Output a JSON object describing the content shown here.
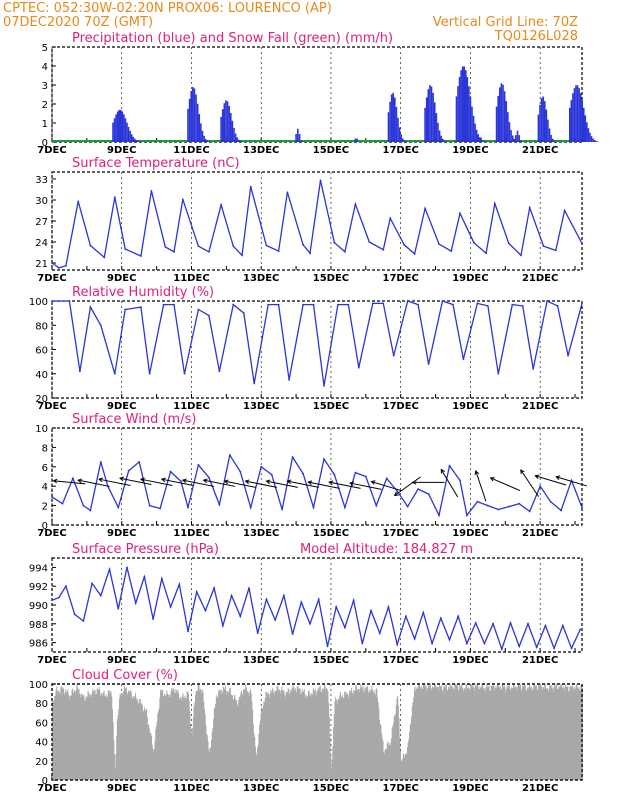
{
  "header": {
    "line1_left": "CPTEC:    052:30W-02:20N    PROX06: LOURENCO (AP)",
    "line2_left": "07DEC2020 70Z (GMT)",
    "line2_right": "Vertical Grid Line: 70Z",
    "line3_right": "TQ0126L028"
  },
  "colors": {
    "header": "#e8891a",
    "title": "#e0207a",
    "series": "#2a35d8",
    "snow": "#1a9a3a",
    "cloud": "#a8a8a8"
  },
  "x_axis": {
    "label_days": [
      7,
      9,
      11,
      13,
      15,
      17,
      19,
      21
    ],
    "labels": [
      "7DEC",
      "9DEC",
      "11DEC",
      "13DEC",
      "15DEC",
      "17DEC",
      "19DEC",
      "21DEC"
    ],
    "range_days": [
      7,
      22.2
    ]
  },
  "chart_data": [
    {
      "type": "bar",
      "title": "Precipitation (blue) and Snow Fall (green) (mm/h)",
      "ylim": [
        0,
        5
      ],
      "yticks": [
        0,
        1,
        2,
        3,
        4,
        5
      ],
      "series": [
        {
          "name": "Precipitation",
          "events": [
            [
              8.75,
              0.8,
              1.7
            ],
            [
              10.9,
              0.6,
              2.9
            ],
            [
              11.85,
              0.6,
              2.2
            ],
            [
              14.0,
              0.2,
              0.7
            ],
            [
              15.7,
              0.1,
              0.3
            ],
            [
              16.65,
              0.5,
              2.6
            ],
            [
              17.7,
              0.6,
              3.0
            ],
            [
              18.6,
              0.8,
              4.0
            ],
            [
              19.25,
              0.1,
              0.4
            ],
            [
              19.75,
              0.6,
              3.1
            ],
            [
              20.3,
              0.2,
              0.6
            ],
            [
              20.95,
              0.5,
              2.4
            ],
            [
              21.85,
              0.8,
              3.0
            ]
          ]
        }
      ]
    },
    {
      "type": "line",
      "title": "Surface Temperature (nC)",
      "ylim": [
        20,
        34
      ],
      "yticks": [
        21,
        24,
        27,
        30,
        33
      ],
      "series": [
        {
          "name": "Temperature",
          "x": [
            7.0,
            7.2,
            7.4,
            7.75,
            8.1,
            8.5,
            8.8,
            9.1,
            9.55,
            9.85,
            10.25,
            10.5,
            10.75,
            11.2,
            11.5,
            11.85,
            12.2,
            12.45,
            12.7,
            13.15,
            13.5,
            13.75,
            14.2,
            14.4,
            14.7,
            15.1,
            15.4,
            15.7,
            16.1,
            16.5,
            16.7,
            17.1,
            17.4,
            17.7,
            18.1,
            18.45,
            18.7,
            19.1,
            19.45,
            19.7,
            20.1,
            20.45,
            20.7,
            21.1,
            21.45,
            21.7,
            22.2
          ],
          "values": [
            21.0,
            20.3,
            20.6,
            29.8,
            23.5,
            21.8,
            30.4,
            23.0,
            22.0,
            31.3,
            23.3,
            22.6,
            30.1,
            23.4,
            22.6,
            29.3,
            23.4,
            22.1,
            31.9,
            23.5,
            22.7,
            31.1,
            23.6,
            22.4,
            32.8,
            23.9,
            22.6,
            29.4,
            24.0,
            22.9,
            27.4,
            23.6,
            22.3,
            28.8,
            23.7,
            22.7,
            28.1,
            23.9,
            22.4,
            29.5,
            23.8,
            22.1,
            28.9,
            23.4,
            22.8,
            28.5,
            23.8
          ]
        }
      ]
    },
    {
      "type": "line",
      "title": "Relative Humidity (%)",
      "ylim": [
        20,
        100
      ],
      "yticks": [
        20,
        40,
        60,
        80,
        100
      ],
      "series": [
        {
          "name": "RH",
          "x": [
            7.0,
            7.5,
            7.8,
            8.1,
            8.4,
            8.8,
            9.1,
            9.55,
            9.8,
            10.2,
            10.5,
            10.8,
            11.2,
            11.5,
            11.8,
            12.2,
            12.5,
            12.8,
            13.2,
            13.5,
            13.8,
            14.2,
            14.5,
            14.8,
            15.2,
            15.5,
            15.8,
            16.2,
            16.5,
            16.8,
            17.2,
            17.5,
            17.8,
            18.2,
            18.5,
            18.8,
            19.2,
            19.5,
            19.8,
            20.2,
            20.5,
            20.8,
            21.2,
            21.5,
            21.8,
            22.2
          ],
          "values": [
            100,
            100,
            42,
            95,
            80,
            40,
            93,
            95,
            40,
            97,
            97,
            40,
            93,
            88,
            42,
            97,
            90,
            32,
            97,
            97,
            35,
            97,
            97,
            30,
            97,
            97,
            45,
            98,
            98,
            55,
            100,
            97,
            48,
            100,
            97,
            52,
            98,
            96,
            40,
            97,
            96,
            44,
            100,
            96,
            55,
            98
          ]
        }
      ]
    },
    {
      "type": "line",
      "title": "Surface Wind (m/s)",
      "ylim": [
        0,
        10
      ],
      "yticks": [
        0,
        2,
        4,
        6,
        8,
        10
      ],
      "series": [
        {
          "name": "Wind speed",
          "x": [
            7.0,
            7.3,
            7.6,
            7.9,
            8.1,
            8.4,
            8.6,
            8.9,
            9.2,
            9.5,
            9.8,
            10.1,
            10.4,
            10.7,
            10.9,
            11.2,
            11.5,
            11.8,
            12.1,
            12.4,
            12.7,
            13.0,
            13.3,
            13.6,
            13.9,
            14.2,
            14.5,
            14.8,
            15.1,
            15.4,
            15.7,
            16.0,
            16.3,
            16.6,
            16.9,
            17.2,
            17.5,
            17.8,
            18.1,
            18.4,
            18.7,
            18.9,
            19.2,
            19.5,
            19.8,
            20.1,
            20.4,
            20.7,
            21.0,
            21.3,
            21.6,
            21.9,
            22.2
          ],
          "values": [
            2.9,
            2.2,
            4.8,
            2.0,
            1.5,
            6.5,
            4.0,
            1.8,
            5.6,
            6.5,
            2.0,
            1.7,
            5.5,
            4.5,
            1.8,
            6.2,
            4.9,
            2.1,
            7.2,
            5.5,
            1.8,
            6.0,
            5.2,
            1.6,
            7.0,
            5.3,
            1.8,
            6.8,
            5.2,
            1.8,
            5.4,
            5.0,
            2.0,
            4.8,
            3.5,
            1.9,
            3.7,
            3.2,
            1.0,
            6.1,
            4.6,
            1.0,
            2.4,
            2.0,
            1.6,
            1.9,
            2.2,
            1.4,
            4.0,
            2.4,
            1.5,
            4.6,
            1.8
          ]
        }
      ],
      "vectors": [
        [
          7.5,
          4.4,
          -1,
          0.1
        ],
        [
          8.2,
          4.3,
          -1,
          0.2
        ],
        [
          8.8,
          4.4,
          -1,
          0.2
        ],
        [
          9.4,
          4.5,
          -1,
          0.2
        ],
        [
          10.0,
          4.4,
          -1,
          0.2
        ],
        [
          10.6,
          4.4,
          -1,
          0.2
        ],
        [
          11.2,
          4.3,
          -1,
          0.2
        ],
        [
          11.8,
          4.3,
          -1,
          0.2
        ],
        [
          12.4,
          4.2,
          -1,
          0.2
        ],
        [
          13.0,
          4.2,
          -1,
          0.2
        ],
        [
          13.6,
          4.2,
          -1,
          0.2
        ],
        [
          14.2,
          4.2,
          -1,
          0.2
        ],
        [
          14.8,
          4.1,
          -1,
          0.2
        ],
        [
          15.4,
          4.1,
          -1,
          0.2
        ],
        [
          16.0,
          4.0,
          -1,
          0.2
        ],
        [
          16.6,
          4.0,
          -1,
          0.3
        ],
        [
          17.2,
          4.0,
          -0.7,
          -0.5
        ],
        [
          17.8,
          4.4,
          -1,
          0.0
        ],
        [
          18.4,
          4.3,
          -0.3,
          0.5
        ],
        [
          19.3,
          4.0,
          -0.2,
          0.6
        ],
        [
          20.0,
          4.2,
          -0.7,
          0.3
        ],
        [
          20.7,
          4.3,
          -0.4,
          0.6
        ],
        [
          21.3,
          4.6,
          -1,
          0.3
        ],
        [
          21.9,
          4.5,
          -1,
          0.3
        ]
      ]
    },
    {
      "type": "line",
      "title": "Surface Pressure (hPa)",
      "annotation": "Model Altitude: 184.827 m",
      "ylim": [
        985,
        995
      ],
      "yticks": [
        986,
        988,
        990,
        992,
        994
      ],
      "series": [
        {
          "name": "Pressure",
          "x": [
            7.0,
            7.2,
            7.4,
            7.65,
            7.9,
            8.15,
            8.4,
            8.65,
            8.9,
            9.15,
            9.4,
            9.65,
            9.9,
            10.15,
            10.4,
            10.65,
            10.9,
            11.15,
            11.4,
            11.65,
            11.9,
            12.15,
            12.4,
            12.65,
            12.9,
            13.15,
            13.4,
            13.65,
            13.9,
            14.15,
            14.4,
            14.65,
            14.9,
            15.15,
            15.4,
            15.65,
            15.9,
            16.15,
            16.4,
            16.65,
            16.9,
            17.15,
            17.4,
            17.65,
            17.9,
            18.15,
            18.4,
            18.65,
            18.9,
            19.15,
            19.4,
            19.65,
            19.9,
            20.15,
            20.4,
            20.65,
            20.9,
            21.15,
            21.4,
            21.65,
            21.9,
            22.15
          ],
          "values": [
            990.5,
            990.8,
            992.0,
            989.0,
            988.3,
            992.3,
            991.0,
            993.8,
            989.6,
            994.0,
            990.2,
            993.0,
            988.5,
            992.8,
            989.8,
            992.2,
            987.2,
            991.4,
            989.4,
            991.8,
            987.8,
            991.0,
            988.8,
            991.8,
            987.0,
            990.6,
            988.4,
            991.0,
            986.9,
            990.3,
            988.0,
            990.6,
            985.6,
            989.8,
            987.6,
            990.5,
            985.9,
            989.4,
            987.0,
            989.8,
            985.8,
            988.8,
            986.4,
            989.2,
            985.9,
            988.6,
            986.3,
            988.8,
            985.9,
            988.1,
            985.9,
            988.0,
            985.3,
            988.1,
            985.6,
            988.0,
            985.5,
            987.8,
            985.4,
            987.8,
            985.4,
            987.4
          ]
        }
      ]
    },
    {
      "type": "area",
      "title": "Cloud Cover (%)",
      "ylim": [
        0,
        100
      ],
      "yticks": [
        0,
        20,
        40,
        60,
        80,
        100
      ],
      "series": [
        {
          "name": "Cloud cover",
          "x": [
            7.0,
            7.1,
            7.3,
            7.5,
            7.7,
            7.9,
            8.1,
            8.3,
            8.5,
            8.7,
            8.8,
            8.85,
            8.95,
            9.1,
            9.3,
            9.5,
            9.7,
            9.9,
            10.1,
            10.3,
            10.5,
            10.7,
            10.9,
            11.0,
            11.1,
            11.2,
            11.3,
            11.5,
            11.7,
            11.9,
            12.1,
            12.3,
            12.5,
            12.7,
            12.85,
            12.95,
            13.1,
            13.3,
            13.5,
            13.7,
            13.9,
            14.1,
            14.3,
            14.5,
            14.7,
            14.9,
            15.0,
            15.1,
            15.3,
            15.5,
            15.7,
            15.9,
            16.1,
            16.3,
            16.5,
            16.7,
            16.9,
            17.0,
            17.1,
            17.2,
            17.3,
            17.4,
            17.6,
            17.8,
            18.0,
            18.2,
            18.4,
            18.6,
            18.8,
            19.0,
            19.2,
            19.4,
            19.6,
            19.8,
            20.0,
            20.2,
            20.4,
            20.6,
            20.8,
            21.0,
            21.2,
            21.4,
            21.6,
            21.8,
            22.0,
            22.2
          ],
          "values": [
            80,
            92,
            95,
            88,
            96,
            85,
            90,
            94,
            88,
            92,
            8,
            60,
            90,
            95,
            88,
            82,
            70,
            30,
            92,
            88,
            95,
            85,
            90,
            45,
            92,
            96,
            94,
            25,
            88,
            95,
            92,
            80,
            96,
            90,
            20,
            62,
            88,
            92,
            95,
            90,
            96,
            94,
            88,
            92,
            95,
            96,
            10,
            82,
            88,
            90,
            95,
            96,
            94,
            92,
            30,
            40,
            88,
            20,
            25,
            35,
            70,
            96,
            98,
            97,
            98,
            96,
            97,
            98,
            96,
            97,
            98,
            96,
            97,
            98,
            96,
            97,
            98,
            96,
            97,
            98,
            96,
            97,
            98,
            96,
            97,
            96
          ]
        }
      ]
    }
  ]
}
